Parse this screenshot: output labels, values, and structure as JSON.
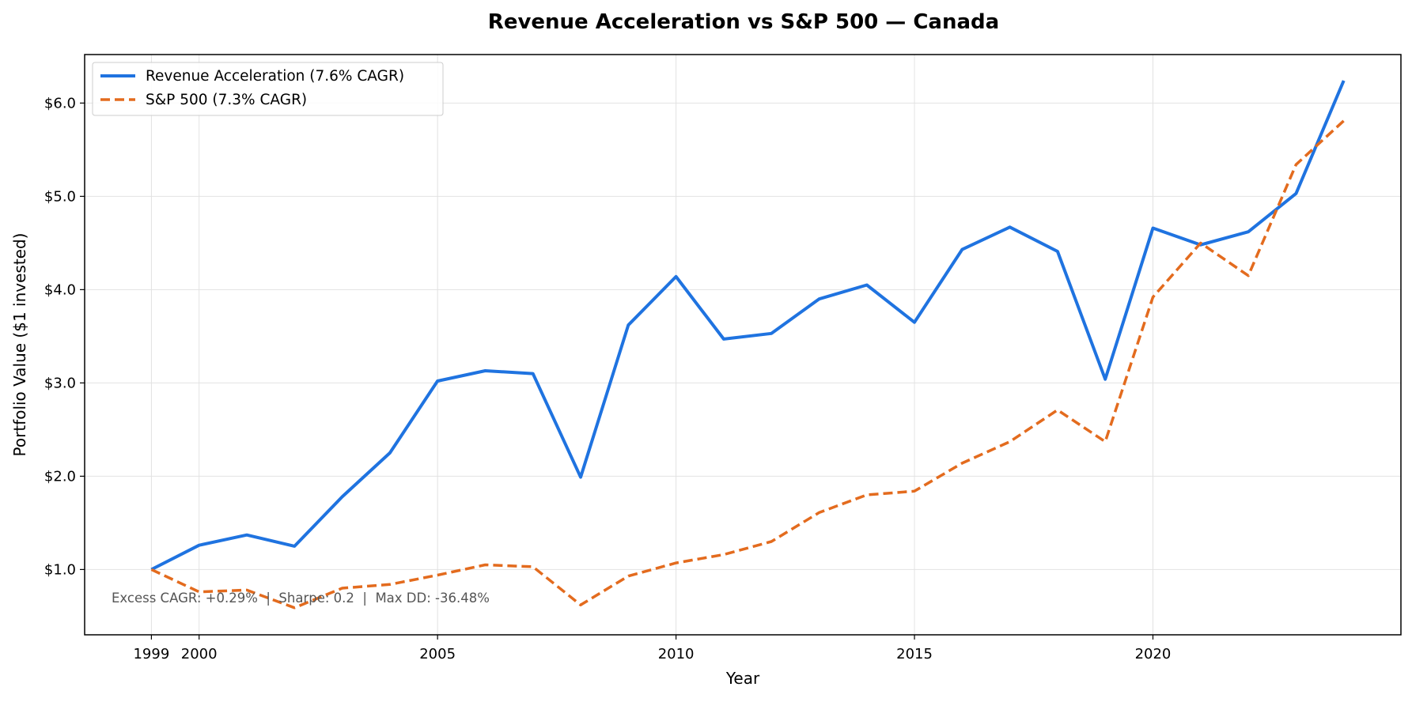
{
  "chart_data": {
    "type": "line",
    "title": "Revenue Acceleration vs S&P 500 — Canada",
    "xlabel": "Year",
    "ylabel": "Portfolio Value ($1 invested)",
    "xlim": [
      1997.6,
      2025.2
    ],
    "ylim": [
      0.3,
      6.52
    ],
    "grid": true,
    "legend_placement": "top-left",
    "x_ticks": [
      1999,
      2000,
      2005,
      2010,
      2015,
      2020
    ],
    "x_tick_labels": [
      "1999",
      "2000",
      "2005",
      "2010",
      "2015",
      "2020"
    ],
    "y_ticks": [
      1.0,
      2.0,
      3.0,
      4.0,
      5.0,
      6.0
    ],
    "y_tick_labels": [
      "$1.0",
      "$2.0",
      "$3.0",
      "$4.0",
      "$5.0",
      "$6.0"
    ],
    "x": [
      1999,
      2000,
      2001,
      2002,
      2003,
      2004,
      2005,
      2006,
      2007,
      2008,
      2009,
      2010,
      2011,
      2012,
      2013,
      2014,
      2015,
      2016,
      2017,
      2018,
      2019,
      2020,
      2021,
      2022,
      2023,
      2024
    ],
    "series": [
      {
        "name": "Revenue Acceleration (7.6% CAGR)",
        "color": "#1f73e0",
        "style": "solid",
        "values": [
          1.0,
          1.26,
          1.37,
          1.25,
          1.78,
          2.25,
          3.02,
          3.13,
          3.1,
          1.99,
          3.62,
          4.14,
          3.47,
          3.53,
          3.9,
          4.05,
          3.65,
          4.43,
          4.67,
          4.41,
          3.04,
          4.66,
          4.48,
          4.62,
          5.03,
          6.24
        ]
      },
      {
        "name": "S&P 500 (7.3% CAGR)",
        "color": "#e36b1e",
        "style": "dashed",
        "values": [
          1.0,
          0.76,
          0.78,
          0.59,
          0.8,
          0.84,
          0.94,
          1.05,
          1.03,
          0.62,
          0.93,
          1.07,
          1.16,
          1.3,
          1.61,
          1.8,
          1.84,
          2.14,
          2.37,
          2.71,
          2.37,
          3.92,
          4.5,
          4.15,
          5.34,
          5.81
        ]
      }
    ],
    "annotation": "Excess CAGR: +0.29%  |  Sharpe: 0.2  |  Max DD: -36.48%"
  }
}
